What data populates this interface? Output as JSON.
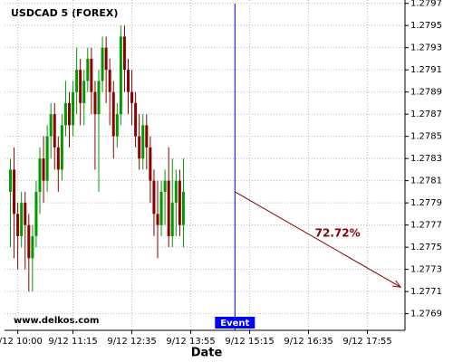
{
  "chart_data": {
    "type": "candlestick",
    "title": "USDCAD 5 (FOREX)",
    "x_label": "Date",
    "watermark": "www.delkos.com",
    "x": [
      "9/12 09:50",
      "9/12 09:55",
      "9/12 10:00",
      "9/12 10:05",
      "9/12 10:10",
      "9/12 10:15",
      "9/12 10:20",
      "9/12 10:25",
      "9/12 10:30",
      "9/12 10:35",
      "9/12 10:40",
      "9/12 10:45",
      "9/12 10:50",
      "9/12 10:55",
      "9/12 11:00",
      "9/12 11:05",
      "9/12 11:10",
      "9/12 11:15",
      "9/12 11:20",
      "9/12 11:25",
      "9/12 11:30",
      "9/12 11:35",
      "9/12 11:40",
      "9/12 11:45",
      "9/12 11:50",
      "9/12 11:55",
      "9/12 12:00",
      "9/12 12:05",
      "9/12 12:10",
      "9/12 12:15",
      "9/12 12:20",
      "9/12 12:25",
      "9/12 12:30",
      "9/12 12:35",
      "9/12 12:40",
      "9/12 12:45",
      "9/12 12:50",
      "9/12 12:55",
      "9/12 13:00",
      "9/12 13:05",
      "9/12 13:10",
      "9/12 13:15",
      "9/12 13:20",
      "9/12 13:25",
      "9/12 13:30",
      "9/12 13:35",
      "9/12 13:40",
      "9/12 13:45"
    ],
    "open": [
      1.278,
      1.2782,
      1.2778,
      1.2776,
      1.2779,
      1.2777,
      1.2774,
      1.2776,
      1.278,
      1.2783,
      1.2781,
      1.2785,
      1.2787,
      1.2784,
      1.2782,
      1.2786,
      1.2788,
      1.2786,
      1.2789,
      1.2791,
      1.2788,
      1.279,
      1.2792,
      1.2789,
      1.2787,
      1.279,
      1.2793,
      1.2791,
      1.2789,
      1.2785,
      1.2787,
      1.2794,
      1.2791,
      1.2789,
      1.2788,
      1.2785,
      1.2783,
      1.2786,
      1.2784,
      1.2781,
      1.2778,
      1.2777,
      1.278,
      1.2781,
      1.2776,
      1.2779,
      1.2781,
      1.2777
    ],
    "high": [
      1.2783,
      1.2784,
      1.2779,
      1.278,
      1.278,
      1.2778,
      1.2777,
      1.2781,
      1.2784,
      1.2785,
      1.2786,
      1.2788,
      1.2788,
      1.2785,
      1.2787,
      1.279,
      1.2789,
      1.279,
      1.2793,
      1.2792,
      1.2791,
      1.2793,
      1.2793,
      1.279,
      1.2791,
      1.2794,
      1.2794,
      1.2792,
      1.279,
      1.2788,
      1.2795,
      1.2795,
      1.2792,
      1.2791,
      1.2789,
      1.2787,
      1.2787,
      1.2787,
      1.2785,
      1.2782,
      1.2781,
      1.2781,
      1.2782,
      1.2784,
      1.2783,
      1.2782,
      1.2782,
      1.2783
    ],
    "low": [
      1.2775,
      1.2774,
      1.2773,
      1.2775,
      1.2773,
      1.2771,
      1.2771,
      1.2775,
      1.2778,
      1.2779,
      1.278,
      1.2783,
      1.2782,
      1.278,
      1.2781,
      1.2785,
      1.2784,
      1.2785,
      1.2787,
      1.2786,
      1.2786,
      1.2789,
      1.2787,
      1.2782,
      1.278,
      1.2789,
      1.2788,
      1.2786,
      1.2783,
      1.2784,
      1.2786,
      1.2789,
      1.2787,
      1.2786,
      1.2784,
      1.2782,
      1.2782,
      1.2782,
      1.2779,
      1.2776,
      1.2774,
      1.2776,
      1.2777,
      1.2775,
      1.2775,
      1.2776,
      1.2776,
      1.2775
    ],
    "close": [
      1.2782,
      1.2778,
      1.2776,
      1.2779,
      1.2777,
      1.2774,
      1.2776,
      1.278,
      1.2783,
      1.2781,
      1.2785,
      1.2787,
      1.2784,
      1.2782,
      1.2786,
      1.2788,
      1.2786,
      1.2789,
      1.2791,
      1.2788,
      1.279,
      1.2792,
      1.2789,
      1.2787,
      1.279,
      1.2793,
      1.2791,
      1.2789,
      1.2785,
      1.2787,
      1.2794,
      1.2791,
      1.2789,
      1.2788,
      1.2785,
      1.2783,
      1.2786,
      1.2784,
      1.2781,
      1.2778,
      1.2777,
      1.278,
      1.2781,
      1.2776,
      1.2779,
      1.2781,
      1.2777,
      1.278
    ],
    "up_color": "#009900",
    "down_color": "#8b0000",
    "xlim": [
      "9/12 09:42",
      "9/12 18:46"
    ],
    "xticks": [
      "9/12 10:00",
      "9/12 11:15",
      "9/12 12:35",
      "9/12 13:55",
      "9/12 15:15",
      "9/12 16:35",
      "9/12 17:55"
    ],
    "ylim": [
      1.27675,
      1.27973
    ],
    "yticks": [
      1.2769,
      1.2771,
      1.2773,
      1.2775,
      1.2777,
      1.2779,
      1.2781,
      1.2783,
      1.2785,
      1.2787,
      1.2789,
      1.2791,
      1.2793,
      1.2795,
      1.2797
    ],
    "grid": true,
    "event": {
      "label": "Event",
      "x": "9/12 14:55",
      "color": "#0000cc"
    },
    "projection": {
      "x": [
        "9/12 14:55",
        "9/12 18:40"
      ],
      "y": [
        1.278,
        1.27714
      ],
      "label": "72.72%",
      "color": "#8b0000"
    }
  }
}
